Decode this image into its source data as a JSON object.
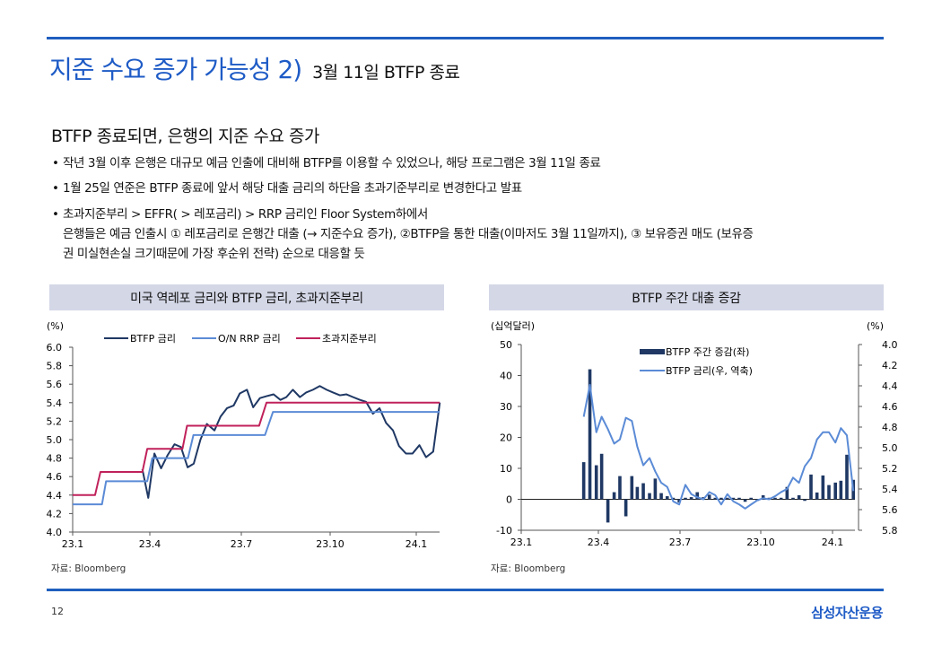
{
  "title": {
    "main": "지준 수요 증가 가능성 2)",
    "sub": "3월 11일 BTFP 종료"
  },
  "headline": "BTFP 종료되면, 은행의 지준 수요 증가",
  "bullets": [
    "작년 3월 이후 은행은 대규모 예금 인출에 대비해 BTFP를 이용할 수 있었으나, 해당 프로그램은 3월 11일 종료",
    "1월 25일 연준은 BTFP 종료에 앞서 해당 대출 금리의 하단을 초과기준부리로 변경한다고 발표",
    "초과지준부리 > EFFR( > 레포금리) > RRP 금리인 Floor System하에서",
    "은행들은 예금 인출시 ① 레포금리로 은행간 대출 (→ 지준수요 증가), ②BTFP을 통한 대출(이마저도 3월 11일까지), ③ 보유증권 매도 (보유증",
    "권 미실현손실 크기때문에 가장 후순위 전략) 순으로 대응할 듯"
  ],
  "footer": {
    "page": "12",
    "logo": "삼성자산운용"
  },
  "colors": {
    "navy": "#1f3864",
    "light_blue": "#5b8bd6",
    "crimson": "#c0215a",
    "brand": "#1e5bc6"
  },
  "chart_data": [
    {
      "type": "line",
      "title": "미국 역레포 금리와 BTFP 금리, 초과지준부리",
      "source": "자료: Bloomberg",
      "ylabel": "(%)",
      "ylim": [
        4.0,
        6.0
      ],
      "yticks": [
        "6.0",
        "5.8",
        "5.6",
        "5.4",
        "5.2",
        "5.0",
        "4.8",
        "4.6",
        "4.4",
        "4.2",
        "4.0"
      ],
      "xticks": [
        "23.1",
        "23.4",
        "23.7",
        "23.10",
        "24.1"
      ],
      "x_unit": "months since 2023-01",
      "legend_position": "top",
      "series": [
        {
          "name": "BTFP 금리",
          "color": "#1f3864",
          "points": [
            [
              2.71,
              4.68
            ],
            [
              2.94,
              4.37
            ],
            [
              3.15,
              4.85
            ],
            [
              3.37,
              4.69
            ],
            [
              3.58,
              4.83
            ],
            [
              3.81,
              4.95
            ],
            [
              4.02,
              4.92
            ],
            [
              4.24,
              4.7
            ],
            [
              4.44,
              4.74
            ],
            [
              4.66,
              5.0
            ],
            [
              4.87,
              5.17
            ],
            [
              5.12,
              5.1
            ],
            [
              5.32,
              5.25
            ],
            [
              5.53,
              5.34
            ],
            [
              5.75,
              5.37
            ],
            [
              5.95,
              5.5
            ],
            [
              6.19,
              5.54
            ],
            [
              6.4,
              5.35
            ],
            [
              6.63,
              5.45
            ],
            [
              6.85,
              5.47
            ],
            [
              7.09,
              5.49
            ],
            [
              7.32,
              5.43
            ],
            [
              7.52,
              5.46
            ],
            [
              7.74,
              5.54
            ],
            [
              7.98,
              5.46
            ],
            [
              8.19,
              5.51
            ],
            [
              8.42,
              5.54
            ],
            [
              8.65,
              5.58
            ],
            [
              8.88,
              5.54
            ],
            [
              9.1,
              5.51
            ],
            [
              9.34,
              5.48
            ],
            [
              9.57,
              5.49
            ],
            [
              9.8,
              5.46
            ],
            [
              10.04,
              5.43
            ],
            [
              10.25,
              5.41
            ],
            [
              10.49,
              5.28
            ],
            [
              10.72,
              5.34
            ],
            [
              10.95,
              5.18
            ],
            [
              11.19,
              5.1
            ],
            [
              11.4,
              4.93
            ],
            [
              11.64,
              4.85
            ],
            [
              11.87,
              4.85
            ],
            [
              12.11,
              4.94
            ],
            [
              12.34,
              4.81
            ],
            [
              12.59,
              4.87
            ],
            [
              12.82,
              5.4
            ]
          ]
        },
        {
          "name": "O/N RRP 금리",
          "color": "#5b8bd6",
          "points": [
            [
              0,
              4.3
            ],
            [
              1.14,
              4.3
            ],
            [
              1.3,
              4.55
            ],
            [
              2.9,
              4.55
            ],
            [
              3.08,
              4.8
            ],
            [
              4.25,
              4.8
            ],
            [
              4.43,
              5.05
            ],
            [
              6.8,
              5.05
            ],
            [
              7.07,
              5.3
            ],
            [
              12.82,
              5.3
            ]
          ]
        },
        {
          "name": "초과지준부리",
          "color": "#c0215a",
          "points": [
            [
              0,
              4.4
            ],
            [
              0.87,
              4.4
            ],
            [
              1.08,
              4.65
            ],
            [
              2.71,
              4.65
            ],
            [
              2.9,
              4.9
            ],
            [
              4.07,
              4.9
            ],
            [
              4.22,
              5.15
            ],
            [
              6.6,
              5.15
            ],
            [
              6.85,
              5.4
            ],
            [
              12.82,
              5.4
            ]
          ]
        }
      ]
    },
    {
      "type": "bar+line",
      "title": "BTFP 주간 대출 증감",
      "source": "자료: Bloomberg",
      "ylabel_left": "(십억달러)",
      "ylabel_right": "(%)",
      "ylim_left": [
        -10,
        50
      ],
      "ylim_right_inverted": [
        4.0,
        5.8
      ],
      "yticks_left": [
        "50",
        "40",
        "30",
        "20",
        "10",
        "0",
        "-10"
      ],
      "yticks_right": [
        "4.0",
        "4.2",
        "4.4",
        "4.6",
        "4.8",
        "5.0",
        "5.2",
        "5.4",
        "5.6",
        "5.8"
      ],
      "xticks": [
        "23.1",
        "23.4",
        "23.7",
        "23.10",
        "24.1"
      ],
      "x_unit": "months since 2023-01",
      "legend_position": "top-center",
      "bars": {
        "name": "BTFP 주간 증감(좌)",
        "color": "#1f3864",
        "points": [
          [
            2.43,
            12
          ],
          [
            2.67,
            42
          ],
          [
            2.92,
            11
          ],
          [
            3.12,
            14.7
          ],
          [
            3.35,
            -7.5
          ],
          [
            3.58,
            2.3
          ],
          [
            3.79,
            7.5
          ],
          [
            4.01,
            -5.5
          ],
          [
            4.23,
            7.5
          ],
          [
            4.43,
            4
          ],
          [
            4.65,
            5.2
          ],
          [
            4.88,
            2
          ],
          [
            5.09,
            6.7
          ],
          [
            5.31,
            2
          ],
          [
            5.53,
            1
          ],
          [
            5.75,
            0.5
          ],
          [
            5.97,
            -1
          ],
          [
            6.2,
            0.5
          ],
          [
            6.42,
            0.7
          ],
          [
            6.64,
            2.3
          ],
          [
            6.87,
            0.7
          ],
          [
            7.09,
            1.5
          ],
          [
            7.31,
            0.5
          ],
          [
            7.53,
            0.5
          ],
          [
            7.76,
            0.5
          ],
          [
            7.98,
            0.5
          ],
          [
            8.2,
            0.5
          ],
          [
            8.42,
            -0.8
          ],
          [
            8.64,
            0.5
          ],
          [
            8.87,
            -0.5
          ],
          [
            9.1,
            1.3
          ],
          [
            9.35,
            0.5
          ],
          [
            9.6,
            0.5
          ],
          [
            9.85,
            0.5
          ],
          [
            10.1,
            4
          ],
          [
            10.35,
            0.5
          ],
          [
            10.6,
            1.3
          ],
          [
            10.84,
            -0.5
          ],
          [
            11.1,
            8
          ],
          [
            11.35,
            2.2
          ],
          [
            11.6,
            7.7
          ],
          [
            11.85,
            4.6
          ],
          [
            12.12,
            5.4
          ],
          [
            12.35,
            6
          ],
          [
            12.6,
            14.4
          ],
          [
            12.87,
            6.3
          ]
        ]
      },
      "line": {
        "name": "BTFP 금리(우, 역축)",
        "color": "#5b8bd6",
        "points": [
          [
            2.43,
            4.7
          ],
          [
            2.67,
            4.39
          ],
          [
            2.92,
            4.85
          ],
          [
            3.12,
            4.7
          ],
          [
            3.35,
            4.82
          ],
          [
            3.58,
            4.96
          ],
          [
            3.79,
            4.92
          ],
          [
            4.01,
            4.71
          ],
          [
            4.23,
            4.74
          ],
          [
            4.43,
            4.99
          ],
          [
            4.65,
            5.17
          ],
          [
            4.88,
            5.1
          ],
          [
            5.09,
            5.23
          ],
          [
            5.31,
            5.34
          ],
          [
            5.53,
            5.38
          ],
          [
            5.75,
            5.52
          ],
          [
            5.97,
            5.55
          ],
          [
            6.2,
            5.36
          ],
          [
            6.42,
            5.45
          ],
          [
            6.64,
            5.48
          ],
          [
            6.87,
            5.5
          ],
          [
            7.09,
            5.43
          ],
          [
            7.31,
            5.46
          ],
          [
            7.53,
            5.55
          ],
          [
            7.76,
            5.45
          ],
          [
            7.98,
            5.52
          ],
          [
            8.2,
            5.55
          ],
          [
            8.42,
            5.59
          ],
          [
            8.64,
            5.55
          ],
          [
            8.87,
            5.51
          ],
          [
            9.1,
            5.49
          ],
          [
            9.35,
            5.5
          ],
          [
            9.6,
            5.47
          ],
          [
            9.85,
            5.43
          ],
          [
            10.1,
            5.4
          ],
          [
            10.35,
            5.29
          ],
          [
            10.6,
            5.34
          ],
          [
            10.84,
            5.18
          ],
          [
            11.1,
            5.1
          ],
          [
            11.35,
            4.92
          ],
          [
            11.6,
            4.85
          ],
          [
            11.85,
            4.85
          ],
          [
            12.12,
            4.95
          ],
          [
            12.35,
            4.81
          ],
          [
            12.6,
            4.88
          ],
          [
            12.87,
            5.42
          ]
        ]
      }
    }
  ]
}
